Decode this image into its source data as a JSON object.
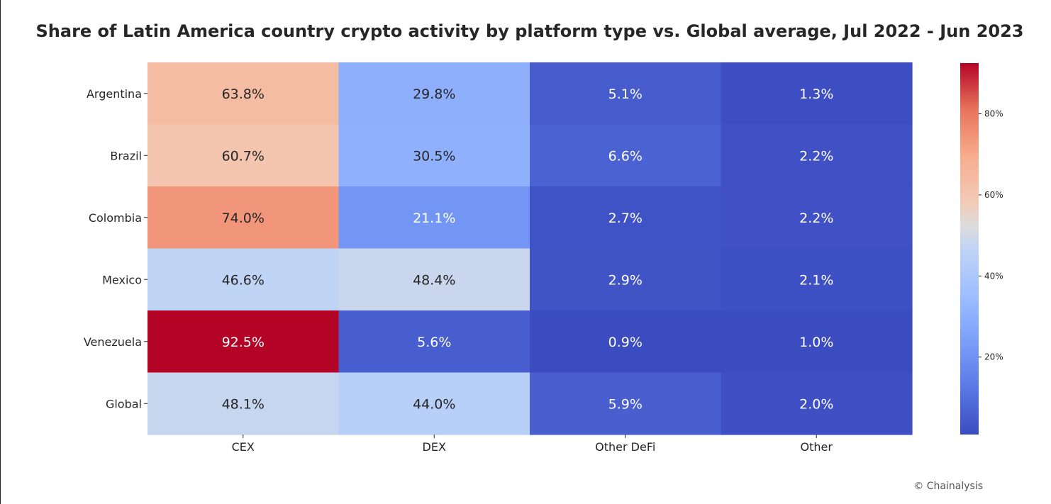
{
  "chart_data": {
    "type": "heatmap",
    "title": "Share of Latin America country crypto activity by platform type vs. Global average, Jul 2022 - Jun 2023",
    "rows": [
      "Argentina",
      "Brazil",
      "Colombia",
      "Mexico",
      "Venezuela",
      "Global"
    ],
    "columns": [
      "CEX",
      "DEX",
      "Other DeFi",
      "Other"
    ],
    "values": [
      [
        63.8,
        29.8,
        5.1,
        1.3
      ],
      [
        60.7,
        30.5,
        6.6,
        2.2
      ],
      [
        74.0,
        21.1,
        2.7,
        2.2
      ],
      [
        46.6,
        48.4,
        2.9,
        2.1
      ],
      [
        92.5,
        5.6,
        0.9,
        1.0
      ],
      [
        48.1,
        44.0,
        5.9,
        2.0
      ]
    ],
    "cell_labels": [
      [
        "63.8%",
        "29.8%",
        "5.1%",
        "1.3%"
      ],
      [
        "60.7%",
        "30.5%",
        "6.6%",
        "2.2%"
      ],
      [
        "74.0%",
        "21.1%",
        "2.7%",
        "2.2%"
      ],
      [
        "46.6%",
        "48.4%",
        "2.9%",
        "2.1%"
      ],
      [
        "92.5%",
        "5.6%",
        "0.9%",
        "1.0%"
      ],
      [
        "48.1%",
        "44.0%",
        "5.9%",
        "2.0%"
      ]
    ],
    "colormap": "coolwarm",
    "colorbar": {
      "range": [
        0.9,
        92.5
      ],
      "ticks": [
        20,
        40,
        60,
        80
      ],
      "tick_labels": [
        "20%",
        "40%",
        "60%",
        "80%"
      ]
    }
  },
  "credit": "© Chainalysis"
}
